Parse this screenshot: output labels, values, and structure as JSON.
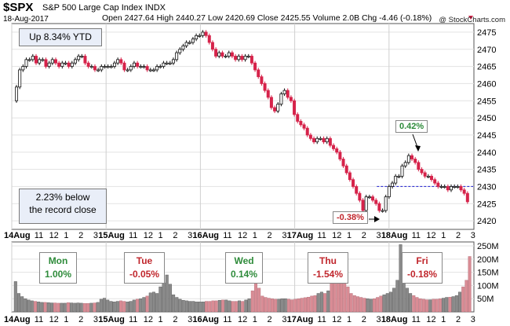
{
  "header": {
    "ticker": "$SPX",
    "name": "S&P 500 Large Cap Index",
    "exchange": "INDX",
    "date": "18-Aug-2017",
    "ohlc": "Open 2427.64  High 2440.27  Low 2420.69  Close 2425.55  Volume 2.0B  Chg -4.46 (-0.18%)",
    "credit": "@ StockCharts.com"
  },
  "annotations": {
    "ytd": "Up 8.34% YTD",
    "record_line1": "2.23% below",
    "record_line2": "the record close",
    "gain_label": "0.42%",
    "loss_label": "-0.38%"
  },
  "days": [
    {
      "name": "Mon",
      "change": "1.00%",
      "dir": "up"
    },
    {
      "name": "Tue",
      "change": "-0.05%",
      "dir": "dn"
    },
    {
      "name": "Wed",
      "change": "0.14%",
      "dir": "up"
    },
    {
      "name": "Thu",
      "change": "-1.54%",
      "dir": "dn"
    },
    {
      "name": "Fri",
      "change": "-0.18%",
      "dir": "dn"
    }
  ],
  "colors": {
    "up": "#2e8b3a",
    "down": "#c0262c",
    "candle_down": "#d6234a",
    "vol_up": "#8a8a8a",
    "vol_down": "#d98c95",
    "ref_line": "#1a1ad0"
  },
  "chart_data": {
    "type": "candlestick",
    "ylim": [
      2417.5,
      2477.5
    ],
    "y_ticks": [
      2420,
      2425,
      2430,
      2435,
      2440,
      2445,
      2450,
      2455,
      2460,
      2465,
      2470,
      2475
    ],
    "vol_ticks": [
      "50M",
      "100M",
      "150M",
      "200M",
      "250M"
    ],
    "vol_tick_values": [
      50,
      100,
      150,
      200,
      250
    ],
    "vol_ylim": [
      0,
      265
    ],
    "reference_level": 2430,
    "x_tick_labels": [
      "14Aug",
      "11",
      "12",
      "1",
      "2",
      "3",
      "15Aug",
      "11",
      "12",
      "1",
      "2",
      "3",
      "16Aug",
      "11",
      "12",
      "1",
      "2",
      "3",
      "17Aug",
      "11",
      "12",
      "1",
      "2",
      "3",
      "18Aug",
      "11",
      "12",
      "1",
      "2",
      "3"
    ],
    "closes": [
      2459,
      2464,
      2465,
      2467,
      2467,
      2468,
      2466,
      2467,
      2467,
      2465,
      2466,
      2467,
      2466,
      2465,
      2466,
      2466,
      2465,
      2466,
      2467,
      2468,
      2468,
      2466,
      2465,
      2465,
      2464,
      2464,
      2465,
      2465,
      2465,
      2465,
      2466,
      2467,
      2466,
      2464,
      2464,
      2465,
      2466,
      2465,
      2465,
      2465,
      2464,
      2464,
      2464,
      2465,
      2465,
      2466,
      2466,
      2466,
      2467,
      2469,
      2470,
      2471,
      2472,
      2472,
      2473,
      2474,
      2474,
      2475,
      2474,
      2472,
      2470,
      2468,
      2469,
      2468,
      2468,
      2469,
      2468,
      2467,
      2468,
      2467,
      2468,
      2468,
      2466,
      2464,
      2462,
      2460,
      2458,
      2456,
      2453,
      2452,
      2454,
      2457,
      2458,
      2456,
      2455,
      2451,
      2449,
      2448,
      2447,
      2445,
      2444,
      2443,
      2444,
      2444,
      2443,
      2444,
      2442,
      2441,
      2440,
      2438,
      2436,
      2434,
      2432,
      2430,
      2428,
      2426,
      2423,
      2427,
      2427,
      2426,
      2425,
      2423,
      2423,
      2427,
      2430,
      2431,
      2433,
      2433,
      2436,
      2437,
      2439,
      2438,
      2437,
      2435,
      2434,
      2433,
      2433,
      2432,
      2431,
      2430,
      2430,
      2430,
      2429,
      2430,
      2430,
      2430,
      2429,
      2428,
      2425.55
    ],
    "volume": [
      115,
      70,
      58,
      50,
      45,
      42,
      40,
      38,
      36,
      36,
      35,
      34,
      34,
      33,
      33,
      33,
      35,
      34,
      33,
      34,
      33,
      32,
      32,
      33,
      34,
      36,
      48,
      52,
      45,
      40,
      38,
      40,
      42,
      40,
      38,
      40,
      45,
      48,
      50,
      55,
      60,
      72,
      75,
      70,
      95,
      110,
      140,
      105,
      65,
      55,
      48,
      44,
      42,
      40,
      40,
      38,
      38,
      38,
      40,
      40,
      42,
      42,
      44,
      45,
      45,
      42,
      40,
      40,
      42,
      40,
      45,
      50,
      80,
      155,
      90,
      60,
      55,
      52,
      50,
      48,
      48,
      50,
      50,
      48,
      46,
      48,
      50,
      52,
      54,
      56,
      60,
      62,
      70,
      75,
      70,
      80,
      120,
      165,
      190,
      220,
      175,
      95,
      70,
      62,
      58,
      55,
      52,
      50,
      48,
      50,
      55,
      60,
      65,
      70,
      75,
      90,
      120,
      255,
      160,
      90,
      70,
      62,
      55,
      50,
      48,
      46,
      46,
      48,
      48,
      50,
      52,
      55,
      56,
      58,
      62,
      75,
      95,
      120,
      210
    ]
  }
}
